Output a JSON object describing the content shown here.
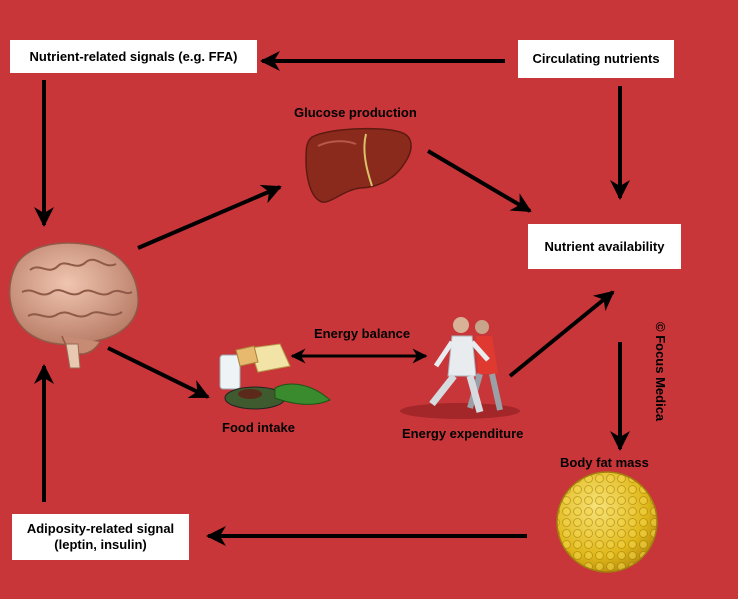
{
  "boxes": {
    "nutrient_signals": "Nutrient-related signals (e.g. FFA)",
    "circulating_nutrients": "Circulating nutrients",
    "nutrient_availability": "Nutrient availability",
    "adiposity_line1": "Adiposity-related signal",
    "adiposity_line2": "(leptin, insulin)"
  },
  "labels": {
    "glucose_production": "Glucose production",
    "energy_balance": "Energy balance",
    "food_intake": "Food intake",
    "energy_expenditure": "Energy expenditure",
    "body_fat_mass": "Body fat mass"
  },
  "copyright": "© Focus Medica",
  "colors": {
    "background": "#c8363a",
    "box": "#ffffff",
    "arrow": "#000000",
    "brain": "#d9a08a",
    "liver": "#8a2a1c",
    "fat": "#e6c21a"
  },
  "icons": [
    "brain-icon",
    "liver-icon",
    "food-icon",
    "runners-icon",
    "fat-cells-icon"
  ]
}
